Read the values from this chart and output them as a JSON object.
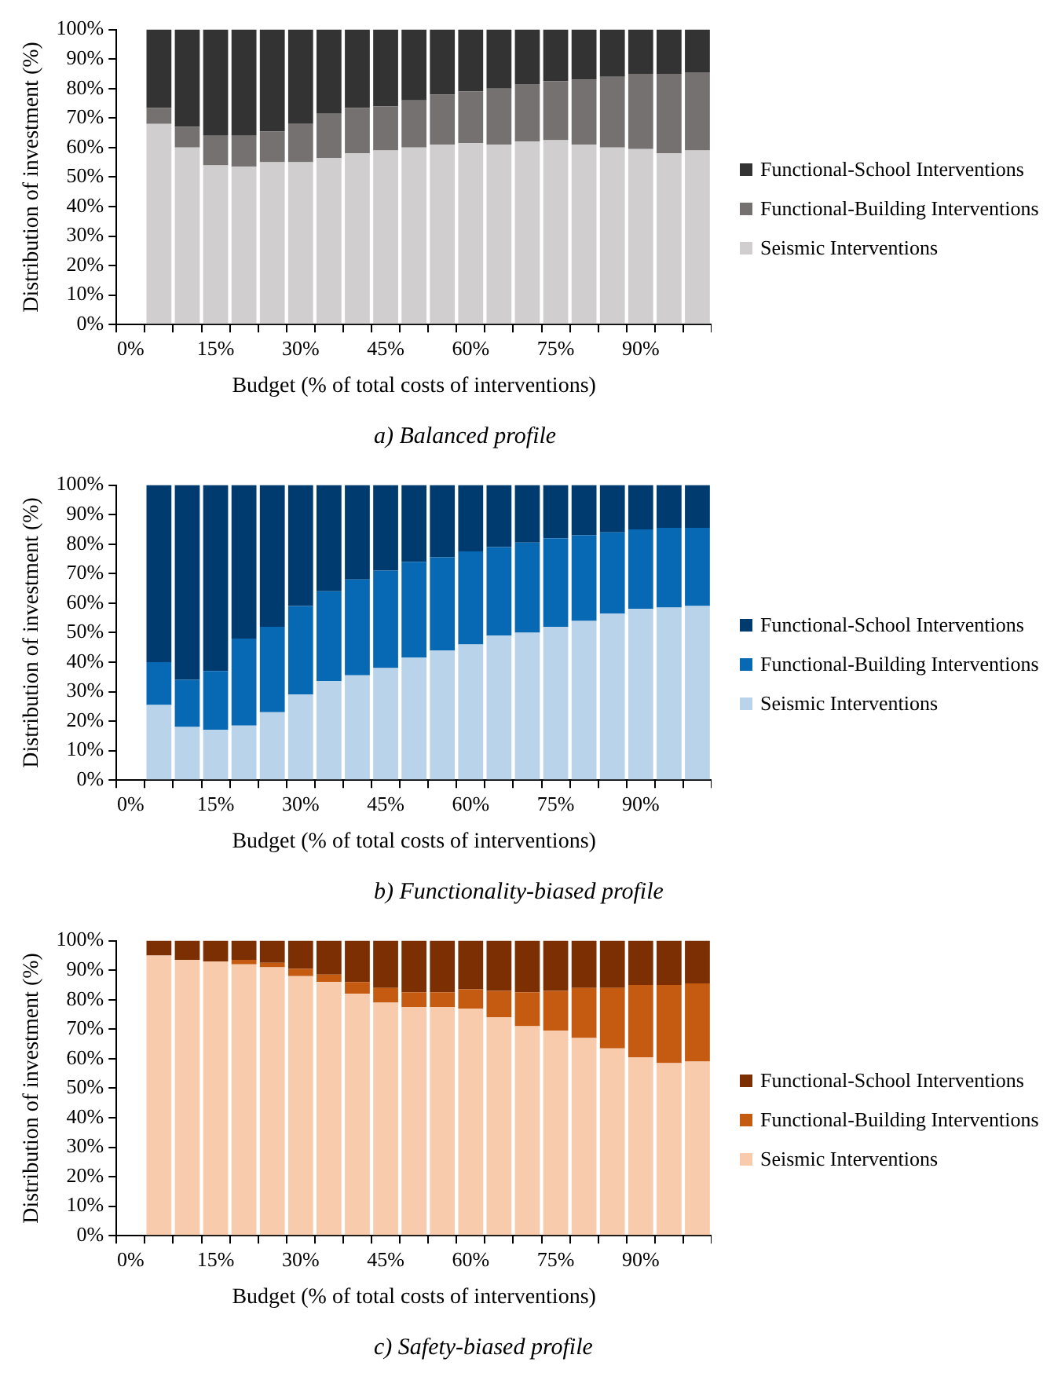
{
  "chart_data": [
    {
      "type": "bar",
      "title": "a)  Balanced profile",
      "xlabel": "Budget (% of total costs of interventions)",
      "ylabel": "Distribution of investment (%)",
      "stacked": true,
      "legend": "right",
      "categories": [
        "0%",
        null,
        null,
        "15%",
        null,
        null,
        "30%",
        null,
        null,
        "45%",
        null,
        null,
        "60%",
        null,
        null,
        "75%",
        null,
        null,
        "90%",
        null,
        null
      ],
      "ylim": [
        0,
        100
      ],
      "yticks": [
        {
          "value": 0,
          "label": "0%"
        },
        {
          "value": 10,
          "label": "10%"
        },
        {
          "value": 20,
          "label": "20%"
        },
        {
          "value": 30,
          "label": "30%"
        },
        {
          "value": 40,
          "label": "40%"
        },
        {
          "value": 50,
          "label": "50%"
        },
        {
          "value": 60,
          "label": "60%"
        },
        {
          "value": 70,
          "label": "70%"
        },
        {
          "value": 80,
          "label": "80%"
        },
        {
          "value": 90,
          "label": "90%"
        },
        {
          "value": 100,
          "label": "100%"
        }
      ],
      "series": [
        {
          "name": "Seismic Interventions",
          "color": "#d0cece",
          "values": [
            null,
            68,
            60,
            54,
            53.5,
            55,
            55,
            56.5,
            58,
            59,
            60,
            61,
            61.5,
            61,
            62,
            62.5,
            61,
            60,
            59.5,
            58,
            59
          ]
        },
        {
          "name": "Functional-Building Interventions",
          "color": "#767171",
          "values": [
            null,
            5.5,
            7,
            10,
            10.5,
            10.5,
            13,
            15,
            15.5,
            15,
            16,
            17,
            17.5,
            19,
            19.5,
            20,
            22,
            24,
            25.5,
            27,
            26.5
          ]
        },
        {
          "name": "Functional-School Interventions",
          "color": "#333333",
          "values": [
            null,
            26.5,
            33,
            36,
            36,
            34.5,
            32,
            28.5,
            26.5,
            26,
            24,
            22,
            21,
            20,
            18.5,
            17.5,
            17,
            16,
            15,
            15,
            14.5
          ]
        }
      ]
    },
    {
      "type": "bar",
      "title": "b) Functionality-biased profile",
      "xlabel": "Budget (% of total costs of interventions)",
      "ylabel": "Distribution of investment (%)",
      "stacked": true,
      "legend": "right",
      "categories": [
        "0%",
        null,
        null,
        "15%",
        null,
        null,
        "30%",
        null,
        null,
        "45%",
        null,
        null,
        "60%",
        null,
        null,
        "75%",
        null,
        null,
        "90%",
        null,
        null
      ],
      "ylim": [
        0,
        100
      ],
      "yticks": [
        {
          "value": 0,
          "label": "0%"
        },
        {
          "value": 10,
          "label": "10%"
        },
        {
          "value": 20,
          "label": "20%"
        },
        {
          "value": 30,
          "label": "30%"
        },
        {
          "value": 40,
          "label": "40%"
        },
        {
          "value": 50,
          "label": "50%"
        },
        {
          "value": 60,
          "label": "60%"
        },
        {
          "value": 70,
          "label": "70%"
        },
        {
          "value": 80,
          "label": "80%"
        },
        {
          "value": 90,
          "label": "90%"
        },
        {
          "value": 100,
          "label": "100%"
        }
      ],
      "series": [
        {
          "name": "Seismic Interventions",
          "color": "#b8d3ea",
          "values": [
            null,
            25.5,
            18,
            17,
            18.5,
            23,
            29,
            33.5,
            35.5,
            38,
            41.5,
            44,
            46,
            49,
            50,
            52,
            54,
            56.5,
            58,
            58.5,
            59
          ]
        },
        {
          "name": "Functional-Building Interventions",
          "color": "#0769b4",
          "values": [
            null,
            14.5,
            16,
            20,
            29.5,
            29,
            30,
            30.5,
            32.5,
            33,
            32.5,
            31.5,
            31.5,
            30,
            30.5,
            30,
            29,
            27.5,
            27,
            27,
            26.5
          ]
        },
        {
          "name": "Functional-School Interventions",
          "color": "#003b6f",
          "values": [
            null,
            60,
            66,
            63,
            52,
            48,
            41,
            36,
            32,
            29,
            26,
            24.5,
            22.5,
            21,
            19.5,
            18,
            17,
            16,
            15,
            14.5,
            14.5
          ]
        }
      ]
    },
    {
      "type": "bar",
      "title": "c) Safety-biased profile",
      "xlabel": "Budget (% of total costs of interventions)",
      "ylabel": "Distribution of investment (%)",
      "stacked": true,
      "legend": "right",
      "categories": [
        "0%",
        null,
        null,
        "15%",
        null,
        null,
        "30%",
        null,
        null,
        "45%",
        null,
        null,
        "60%",
        null,
        null,
        "75%",
        null,
        null,
        "90%",
        null,
        null
      ],
      "ylim": [
        0,
        100
      ],
      "yticks": [
        {
          "value": 0,
          "label": "0%"
        },
        {
          "value": 10,
          "label": "10%"
        },
        {
          "value": 20,
          "label": "20%"
        },
        {
          "value": 30,
          "label": "30%"
        },
        {
          "value": 40,
          "label": "40%"
        },
        {
          "value": 50,
          "label": "50%"
        },
        {
          "value": 60,
          "label": "60%"
        },
        {
          "value": 70,
          "label": "70%"
        },
        {
          "value": 80,
          "label": "80%"
        },
        {
          "value": 90,
          "label": "90%"
        },
        {
          "value": 100,
          "label": "100%"
        }
      ],
      "series": [
        {
          "name": "Seismic Interventions",
          "color": "#f9cbad",
          "values": [
            null,
            95,
            93.5,
            93,
            92,
            91,
            88,
            86,
            82,
            79,
            77.5,
            77.5,
            77,
            74,
            71,
            69.5,
            67,
            63.5,
            60.5,
            58.5,
            59
          ]
        },
        {
          "name": "Functional-Building Interventions",
          "color": "#c55a11",
          "values": [
            null,
            0,
            0,
            0,
            1.5,
            1.5,
            2.5,
            2.5,
            4,
            5,
            5,
            5,
            6.5,
            9,
            11.5,
            13.5,
            17,
            20.5,
            24.5,
            26.5,
            26.5
          ]
        },
        {
          "name": "Functional-School Interventions",
          "color": "#7b2f02",
          "values": [
            null,
            5,
            6.5,
            7,
            6.5,
            7.5,
            9.5,
            11.5,
            14,
            16,
            17.5,
            17.5,
            16.5,
            17,
            17.5,
            17,
            16,
            16,
            15,
            15,
            14.5
          ]
        }
      ]
    }
  ]
}
